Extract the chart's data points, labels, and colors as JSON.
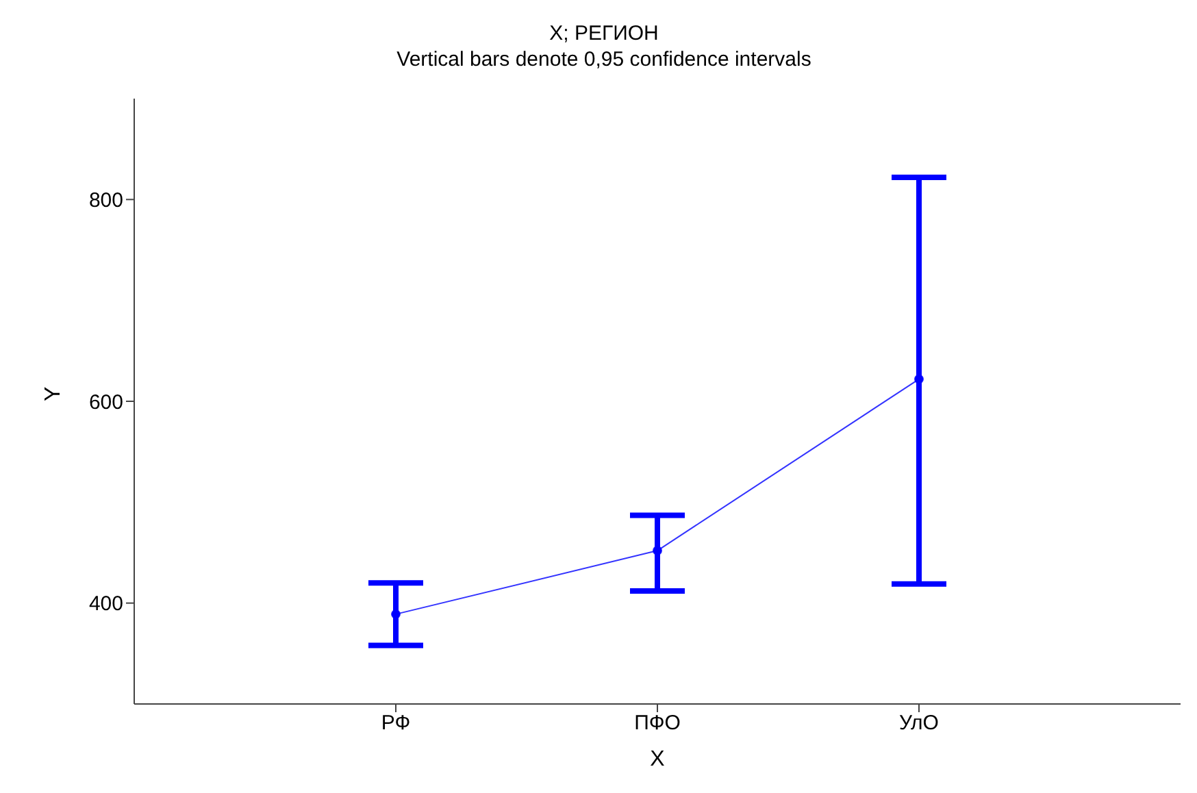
{
  "chart_data": {
    "type": "line",
    "title": "X; РЕГИОН",
    "subtitle": "Vertical bars denote 0,95 confidence intervals",
    "xlabel": "X",
    "ylabel": "Y",
    "categories": [
      "РФ",
      "ПФО",
      "УлО"
    ],
    "series": [
      {
        "color": "#0000ff",
        "values": [
          389,
          452,
          622
        ],
        "errors": [
          [
            358,
            420
          ],
          [
            412,
            487
          ],
          [
            419,
            822
          ]
        ]
      }
    ],
    "ylim": [
      300,
      900
    ],
    "yticks": [
      400,
      600,
      800
    ],
    "grid": false,
    "legend": false,
    "marker": "circle",
    "line_style": "solid"
  }
}
